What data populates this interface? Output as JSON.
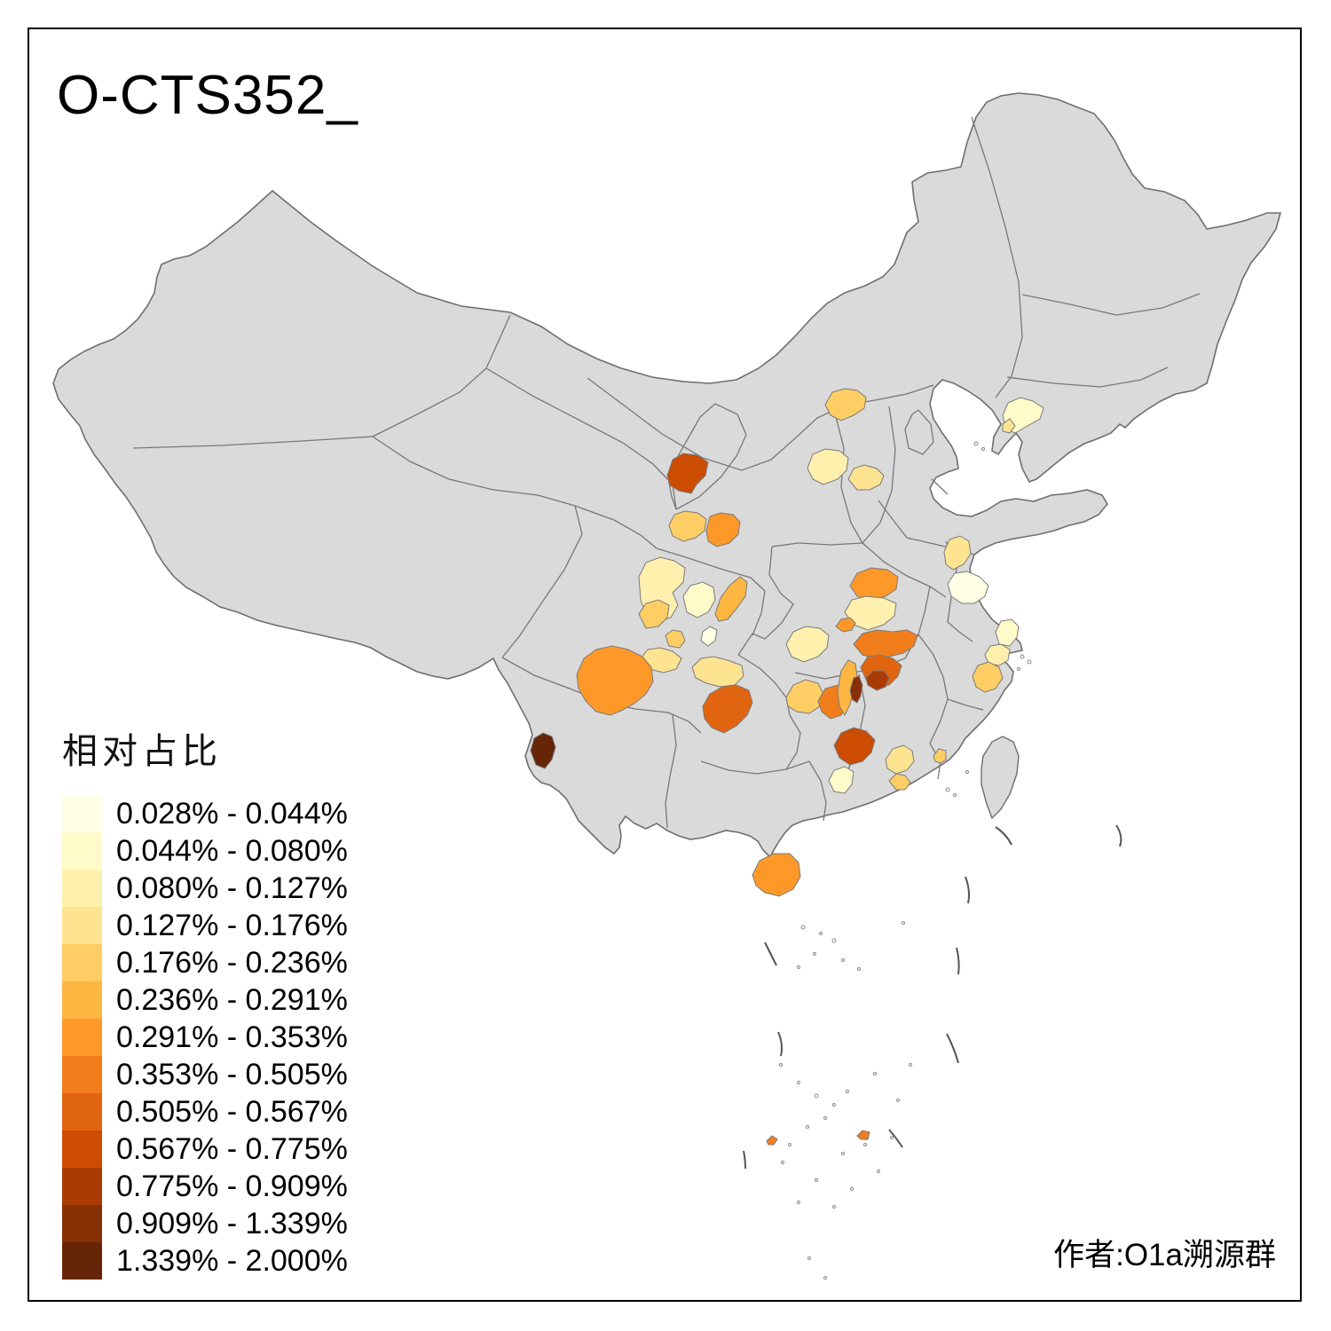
{
  "title": "O-CTS352_",
  "attribution": "作者:O1a溯源群",
  "legend": {
    "title": "相对占比",
    "classes": [
      {
        "label": "0.028% - 0.044%",
        "color": "#FFFFE5"
      },
      {
        "label": "0.044% - 0.080%",
        "color": "#FFFACA"
      },
      {
        "label": "0.080% - 0.127%",
        "color": "#FFF0AE"
      },
      {
        "label": "0.127% - 0.176%",
        "color": "#FEE391"
      },
      {
        "label": "0.176% - 0.236%",
        "color": "#FECE65"
      },
      {
        "label": "0.236% - 0.291%",
        "color": "#FEB642"
      },
      {
        "label": "0.291% - 0.353%",
        "color": "#FE9929"
      },
      {
        "label": "0.353% - 0.505%",
        "color": "#F27E1B"
      },
      {
        "label": "0.505% - 0.567%",
        "color": "#E16410"
      },
      {
        "label": "0.567% - 0.775%",
        "color": "#CC4C02"
      },
      {
        "label": "0.775% - 0.909%",
        "color": "#AA3C03"
      },
      {
        "label": "0.909% - 1.339%",
        "color": "#883005"
      },
      {
        "label": "1.339% - 2.000%",
        "color": "#662506"
      }
    ]
  },
  "map": {
    "background_color": "#FFFFFF",
    "no_data_color": "#DADADA",
    "national_border_color": "#6E6E6E",
    "province_border_color": "#787878",
    "regions": [
      {
        "name": "gansu-baiyin",
        "class_index": 10
      },
      {
        "name": "gansu-linxia",
        "class_index": 5
      },
      {
        "name": "gansu-dingxi",
        "class_index": 7
      },
      {
        "name": "hebei-chengde",
        "class_index": 5
      },
      {
        "name": "shanxi-west",
        "class_index": 3
      },
      {
        "name": "shanxi-east",
        "class_index": 4
      },
      {
        "name": "liaoning-dalian",
        "class_index": 2
      },
      {
        "name": "liaoning-dalian-south",
        "class_index": 4
      },
      {
        "name": "henan-nanyang",
        "class_index": 7
      },
      {
        "name": "hubei-central-pale",
        "class_index": 3
      },
      {
        "name": "hubei-shiyan-dot",
        "class_index": 7
      },
      {
        "name": "jiangsu-north",
        "class_index": 4
      },
      {
        "name": "jiangsu-south-pale",
        "class_index": 1
      },
      {
        "name": "shanghai-suzhou",
        "class_index": 2
      },
      {
        "name": "zhejiang-ningbo",
        "class_index": 3
      },
      {
        "name": "zhejiang-wenzhou",
        "class_index": 5
      },
      {
        "name": "sichuan-north-pale",
        "class_index": 3
      },
      {
        "name": "sichuan-nanchong",
        "class_index": 2
      },
      {
        "name": "sichuan-bazhong-strip",
        "class_index": 6
      },
      {
        "name": "sichuan-chengdu",
        "class_index": 5
      },
      {
        "name": "sichuan-guangan",
        "class_index": 1
      },
      {
        "name": "sichuan-neijiang",
        "class_index": 5
      },
      {
        "name": "sichuan-south-yellow",
        "class_index": 4
      },
      {
        "name": "chongqing-west",
        "class_index": 4
      },
      {
        "name": "sichuan-liangshan",
        "class_index": 7
      },
      {
        "name": "guizhou-zunyi",
        "class_index": 9
      },
      {
        "name": "yunnan-west-dark",
        "class_index": 13
      },
      {
        "name": "hubei-yichang-pale",
        "class_index": 3
      },
      {
        "name": "hunan-changde",
        "class_index": 5
      },
      {
        "name": "hunan-yiyang-orange",
        "class_index": 8
      },
      {
        "name": "hunan-changsha-strip",
        "class_index": 6
      },
      {
        "name": "jiangxi-jiujiang",
        "class_index": 8
      },
      {
        "name": "jiangxi-yichun",
        "class_index": 9
      },
      {
        "name": "jiangxi-xinyu-dark",
        "class_index": 11
      },
      {
        "name": "jiangxi-pingxiang-strip",
        "class_index": 12
      },
      {
        "name": "hunan-hengyang",
        "class_index": 10
      },
      {
        "name": "hunan-yongzhou-pale",
        "class_index": 2
      },
      {
        "name": "hunan-chenzhou-pale",
        "class_index": 4
      },
      {
        "name": "guangdong-shaoguan",
        "class_index": 5
      },
      {
        "name": "guangdong-chaoshan",
        "class_index": 5
      },
      {
        "name": "hainan",
        "class_index": 7
      },
      {
        "name": "south-sea-isle-1",
        "class_index": 8
      },
      {
        "name": "south-sea-isle-2",
        "class_index": 8
      }
    ]
  }
}
